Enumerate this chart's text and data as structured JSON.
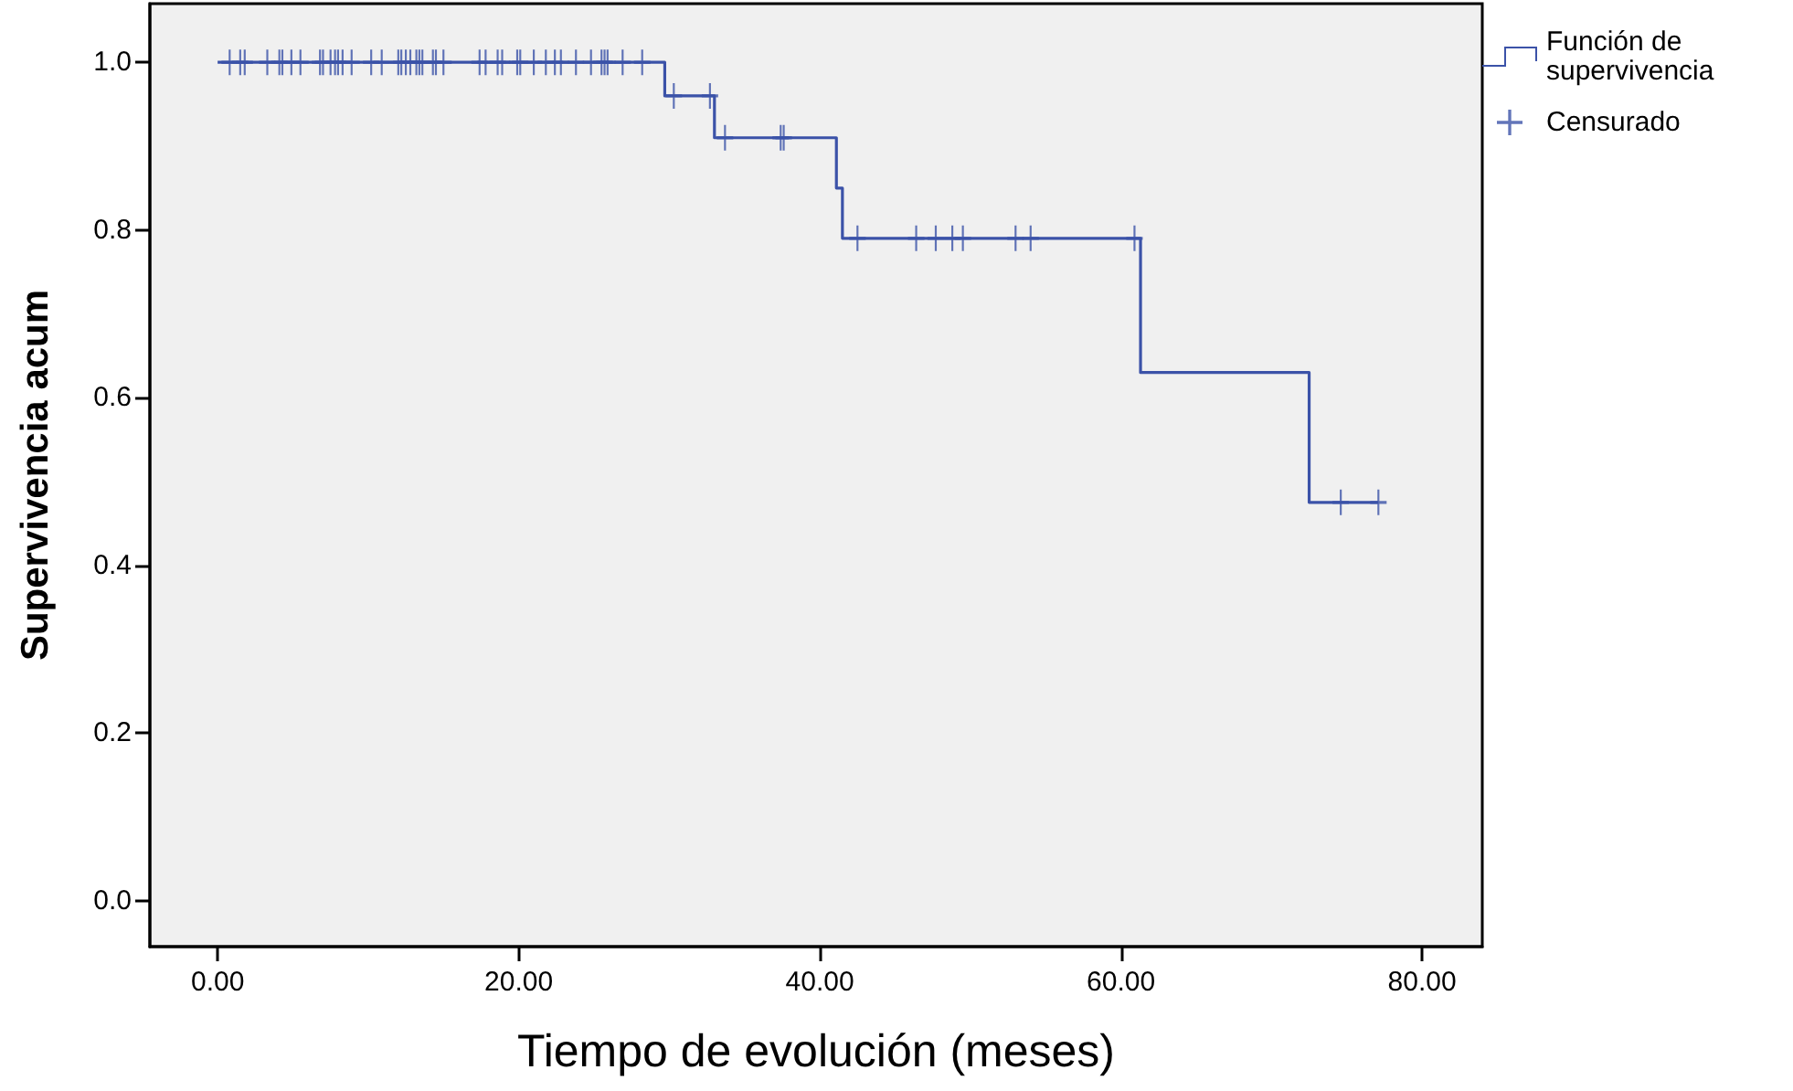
{
  "chart_data": {
    "type": "step",
    "xlabel": "Tiempo de evolución (meses)",
    "ylabel": "Supervivencia acum",
    "xlim": [
      -4.5,
      84
    ],
    "ylim": [
      -0.055,
      1.07
    ],
    "xticks": [
      {
        "value": 0,
        "label": "0.00"
      },
      {
        "value": 20,
        "label": "20.00"
      },
      {
        "value": 40,
        "label": "40.00"
      },
      {
        "value": 60,
        "label": "60.00"
      },
      {
        "value": 80,
        "label": "80.00"
      }
    ],
    "yticks": [
      {
        "value": 0,
        "label": "0.0"
      },
      {
        "value": 0.2,
        "label": "0.2"
      },
      {
        "value": 0.4,
        "label": "0.4"
      },
      {
        "value": 0.6,
        "label": "0.6"
      },
      {
        "value": 0.8,
        "label": "0.8"
      },
      {
        "value": 1,
        "label": "1.0"
      }
    ],
    "grid": false,
    "legend": "top right",
    "series": [
      {
        "name": "Función de supervivencia",
        "color": "#3b52a8",
        "marker": "none",
        "x": [
          0,
          29.7,
          33.0,
          41.1,
          41.5,
          61.3,
          72.5,
          77.1
        ],
        "values": [
          1,
          0.96,
          0.91,
          0.85,
          0.79,
          0.63,
          0.475,
          0.475
        ]
      },
      {
        "name": "Censurado",
        "type": "scatter",
        "color": "#3b52a8",
        "marker": "cross",
        "x": [
          0.8,
          1.5,
          1.8,
          3.3,
          4.1,
          4.3,
          4.9,
          5.5,
          6.8,
          7.0,
          7.5,
          7.8,
          8.0,
          8.3,
          8.9,
          10.2,
          10.9,
          12.0,
          12.2,
          12.5,
          12.8,
          13.2,
          13.4,
          13.6,
          14.3,
          14.5,
          15.0,
          17.4,
          17.8,
          18.6,
          18.9,
          19.9,
          20.1,
          21.0,
          21.8,
          22.4,
          22.8,
          23.8,
          24.8,
          25.5,
          25.7,
          25.9,
          26.9,
          28.2,
          30.3,
          32.7,
          33.7,
          37.4,
          37.6,
          42.5,
          46.4,
          47.7,
          48.8,
          49.5,
          53.0,
          54.0,
          60.9,
          74.6,
          77.1
        ],
        "values": [
          1,
          1,
          1,
          1,
          1,
          1,
          1,
          1,
          1,
          1,
          1,
          1,
          1,
          1,
          1,
          1,
          1,
          1,
          1,
          1,
          1,
          1,
          1,
          1,
          1,
          1,
          1,
          1,
          1,
          1,
          1,
          1,
          1,
          1,
          1,
          1,
          1,
          1,
          1,
          1,
          1,
          1,
          1,
          1,
          0.96,
          0.96,
          0.91,
          0.91,
          0.91,
          0.79,
          0.79,
          0.79,
          0.79,
          0.79,
          0.79,
          0.79,
          0.79,
          0.475,
          0.475
        ]
      }
    ]
  }
}
